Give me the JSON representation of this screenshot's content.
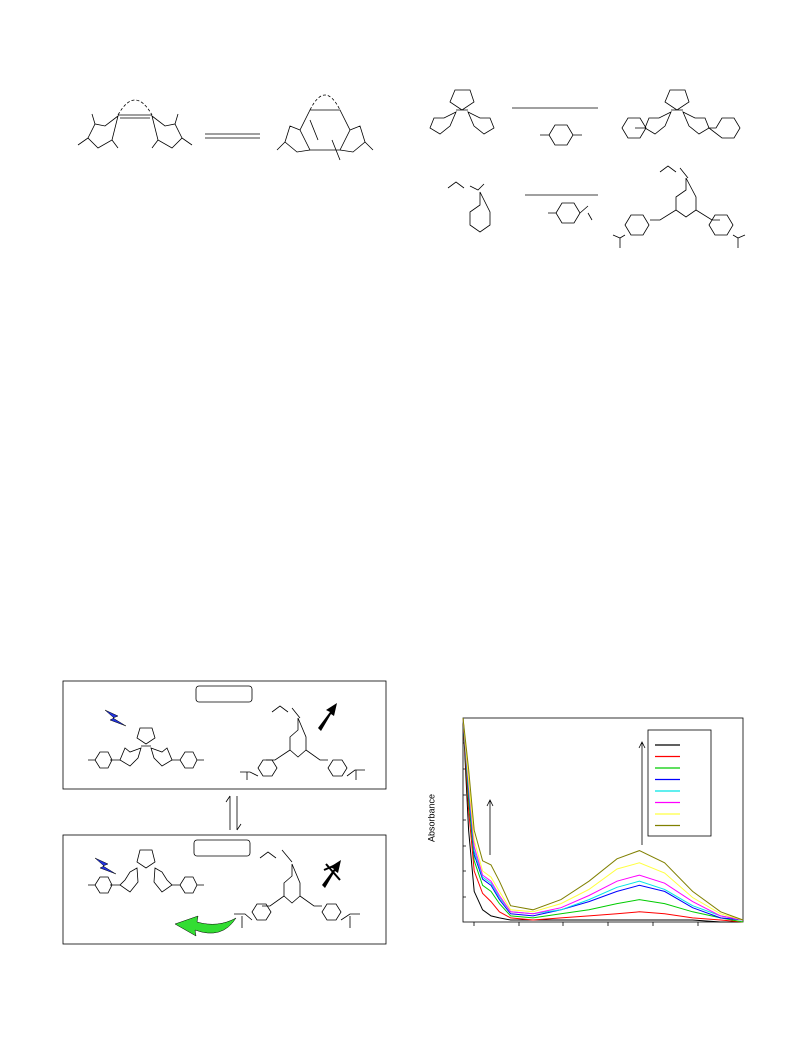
{
  "chart_data": {
    "type": "line",
    "ylabel": "Absorbance",
    "x": [
      0,
      2,
      4,
      7,
      10,
      13,
      17,
      25,
      35,
      45,
      55,
      63,
      72,
      82,
      92,
      100
    ],
    "xlim": [
      0,
      100
    ],
    "ylim": [
      0,
      100
    ],
    "series": [
      {
        "color": "#000000",
        "values": [
          100,
          45,
          15,
          6,
          3,
          2,
          1,
          1,
          1,
          1,
          1,
          1,
          1,
          1,
          0,
          0
        ]
      },
      {
        "color": "#ff0000",
        "values": [
          100,
          55,
          25,
          14,
          10,
          5,
          2,
          1,
          2,
          3,
          4,
          5,
          4,
          2,
          1,
          0
        ]
      },
      {
        "color": "#00cc00",
        "values": [
          100,
          60,
          30,
          18,
          15,
          9,
          3,
          2,
          4,
          6,
          9,
          11,
          9,
          5,
          2,
          0
        ]
      },
      {
        "color": "#0000ff",
        "values": [
          100,
          64,
          33,
          21,
          18,
          11,
          4,
          3,
          6,
          10,
          15,
          18,
          15,
          7,
          2,
          1
        ]
      },
      {
        "color": "#00e5e5",
        "values": [
          100,
          66,
          35,
          22,
          19,
          12,
          5,
          4,
          6,
          11,
          17,
          20,
          16,
          8,
          3,
          1
        ]
      },
      {
        "color": "#ff00ff",
        "values": [
          100,
          68,
          37,
          23,
          20,
          13,
          5,
          4,
          7,
          13,
          20,
          23,
          19,
          10,
          3,
          1
        ]
      },
      {
        "color": "#ffff40",
        "values": [
          100,
          70,
          40,
          25,
          22,
          15,
          6,
          5,
          9,
          16,
          26,
          29,
          24,
          12,
          4,
          1
        ]
      },
      {
        "color": "#808000",
        "values": [
          100,
          75,
          45,
          30,
          28,
          20,
          8,
          6,
          11,
          20,
          31,
          35,
          29,
          15,
          5,
          1
        ]
      }
    ]
  }
}
